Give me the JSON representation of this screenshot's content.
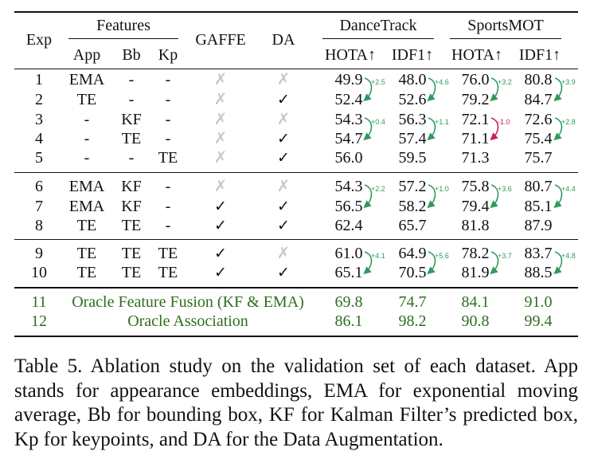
{
  "headers": {
    "exp": "Exp",
    "features": "Features",
    "app": "App",
    "bb": "Bb",
    "kp": "Kp",
    "gaffe": "GAFFE",
    "da": "DA",
    "dancetrack": "DanceTrack",
    "sportsmot": "SportsMOT",
    "hota": "HOTA↑",
    "idf1": "IDF1↑"
  },
  "rows": [
    {
      "exp": "1",
      "app": "EMA",
      "bb": "-",
      "kp": "-",
      "gaffe": "✗",
      "da": "✗",
      "dt_hota": "49.9",
      "dt_idf1": "48.0",
      "sm_hota": "76.0",
      "sm_idf1": "80.8"
    },
    {
      "exp": "2",
      "app": "TE",
      "bb": "-",
      "kp": "-",
      "gaffe": "✗",
      "da": "✓",
      "dt_hota": "52.4",
      "dt_idf1": "52.6",
      "sm_hota": "79.2",
      "sm_idf1": "84.7"
    },
    {
      "exp": "3",
      "app": "-",
      "bb": "KF",
      "kp": "-",
      "gaffe": "✗",
      "da": "✗",
      "dt_hota": "54.3",
      "dt_idf1": "56.3",
      "sm_hota": "72.1",
      "sm_idf1": "72.6"
    },
    {
      "exp": "4",
      "app": "-",
      "bb": "TE",
      "kp": "-",
      "gaffe": "✗",
      "da": "✓",
      "dt_hota": "54.7",
      "dt_idf1": "57.4",
      "sm_hota": "71.1",
      "sm_idf1": "75.4"
    },
    {
      "exp": "5",
      "app": "-",
      "bb": "-",
      "kp": "TE",
      "gaffe": "✗",
      "da": "✓",
      "dt_hota": "56.0",
      "dt_idf1": "59.5",
      "sm_hota": "71.3",
      "sm_idf1": "75.7"
    },
    {
      "exp": "6",
      "app": "EMA",
      "bb": "KF",
      "kp": "-",
      "gaffe": "✗",
      "da": "✗",
      "dt_hota": "54.3",
      "dt_idf1": "57.2",
      "sm_hota": "75.8",
      "sm_idf1": "80.7"
    },
    {
      "exp": "7",
      "app": "EMA",
      "bb": "KF",
      "kp": "-",
      "gaffe": "✓",
      "da": "✓",
      "dt_hota": "56.5",
      "dt_idf1": "58.2",
      "sm_hota": "79.4",
      "sm_idf1": "85.1"
    },
    {
      "exp": "8",
      "app": "TE",
      "bb": "TE",
      "kp": "-",
      "gaffe": "✓",
      "da": "✓",
      "dt_hota": "62.4",
      "dt_idf1": "65.7",
      "sm_hota": "81.8",
      "sm_idf1": "87.9"
    },
    {
      "exp": "9",
      "app": "TE",
      "bb": "TE",
      "kp": "TE",
      "gaffe": "✓",
      "da": "✗",
      "dt_hota": "61.0",
      "dt_idf1": "64.9",
      "sm_hota": "78.2",
      "sm_idf1": "83.7"
    },
    {
      "exp": "10",
      "app": "TE",
      "bb": "TE",
      "kp": "TE",
      "gaffe": "✓",
      "da": "✓",
      "dt_hota": "65.1",
      "dt_idf1": "70.5",
      "sm_hota": "81.9",
      "sm_idf1": "88.5"
    }
  ],
  "oracle_rows": [
    {
      "exp": "11",
      "label": "Oracle Feature Fusion (KF & EMA)",
      "dt_hota": "69.8",
      "dt_idf1": "74.7",
      "sm_hota": "84.1",
      "sm_idf1": "91.0"
    },
    {
      "exp": "12",
      "label": "Oracle Association",
      "dt_hota": "86.1",
      "dt_idf1": "98.2",
      "sm_hota": "90.8",
      "sm_idf1": "99.4"
    }
  ],
  "deltas": [
    {
      "pair": "1→2",
      "dt_hota": "+2.5",
      "dt_idf1": "+4.6",
      "sm_hota": "+3.2",
      "sm_idf1": "+3.9"
    },
    {
      "pair": "3→4",
      "dt_hota": "+0.4",
      "dt_idf1": "+1.1",
      "sm_hota": "-1.0",
      "sm_idf1": "+2.8"
    },
    {
      "pair": "6→7",
      "dt_hota": "+2.2",
      "dt_idf1": "+1.0",
      "sm_hota": "+3.6",
      "sm_idf1": "+4.4"
    },
    {
      "pair": "9→10",
      "dt_hota": "+4.1",
      "dt_idf1": "+5.6",
      "sm_hota": "+3.7",
      "sm_idf1": "+4.8"
    }
  ],
  "colors": {
    "positive_delta": "#2e9a5e",
    "negative_delta": "#c8205a",
    "oracle_text": "#2e6e1e",
    "cross_mark": "#c8c8c8"
  },
  "caption": "Table 5. Ablation study on the validation set of each dataset. App stands for appearance embeddings, EMA for exponential moving average, Bb for bounding box, KF for Kalman Filter’s predicted box, Kp for keypoints, and DA for the Data Augmentation."
}
